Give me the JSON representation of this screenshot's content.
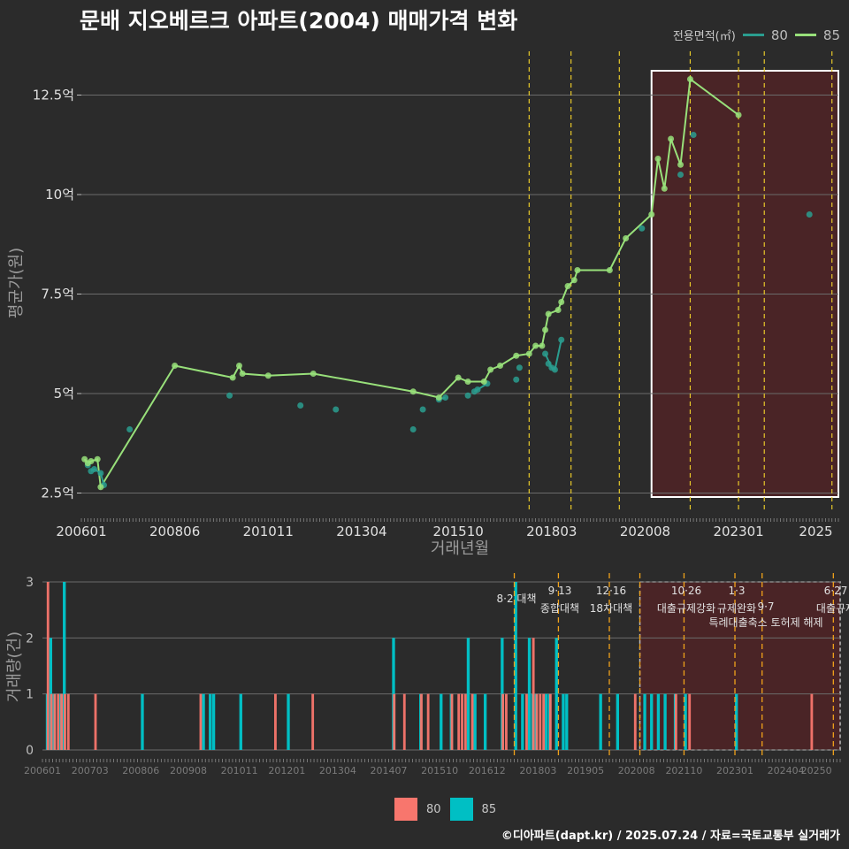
{
  "title": "문배 지오베르크 아파트(2004) 매매가격 변화",
  "credit": "©디아파트(dapt.kr) / 2025.07.24 / 자료=국토교통부 실거래가",
  "colors": {
    "background": "#2b2b2b",
    "series80_line": "#2a9d8f",
    "series85_line": "#98e07a",
    "bar80": "#f8766d",
    "bar85": "#00bfc4",
    "policy_line": "#e8c92a",
    "highlight_fill": "#4a2426",
    "grid": "#6b6b6b"
  },
  "legend_top": {
    "title": "전용면적(㎡)",
    "items": [
      "80",
      "85"
    ]
  },
  "legend_bottom": {
    "items": [
      "80",
      "85"
    ]
  },
  "chart_data": [
    {
      "type": "line",
      "xlabel": "거래년월",
      "ylabel": "평균가(원)",
      "x_ticks": [
        "200601",
        "200806",
        "201011",
        "201304",
        "201510",
        "201803",
        "202008",
        "202301",
        "2025"
      ],
      "y_ticks": [
        "2.5억",
        "5억",
        "7.5억",
        "10억",
        "12.5억"
      ],
      "ylim": [
        2.0,
        13.6
      ],
      "y_unit": "억",
      "xlim": [
        "2006-01",
        "2025-08"
      ],
      "highlight_range": [
        "2020-10",
        "2025-08"
      ],
      "policy_lines": [
        "2017-08",
        "2018-09",
        "2019-12",
        "2021-10",
        "2023-01",
        "2023-09",
        "2025-06"
      ],
      "series": [
        {
          "name": "80",
          "points": [
            [
              "2006-03",
              3.2
            ],
            [
              "2006-04",
              3.05
            ],
            [
              "2006-05",
              3.1
            ],
            [
              "2006-07",
              3.0
            ],
            [
              "2006-08",
              2.7
            ],
            [
              "2007-04",
              4.1
            ],
            [
              "2009-11",
              4.95
            ],
            [
              "2011-09",
              4.7
            ],
            [
              "2012-08",
              4.6
            ],
            [
              "2014-08",
              4.1
            ],
            [
              "2014-11",
              4.6
            ],
            [
              "2015-04",
              4.85
            ],
            [
              "2015-06",
              4.9
            ],
            [
              "2016-01",
              4.95
            ],
            [
              "2016-03",
              5.05
            ],
            [
              "2016-04",
              5.1
            ],
            [
              "2016-07",
              5.25
            ],
            [
              "2017-04",
              5.35
            ],
            [
              "2017-05",
              5.65
            ],
            [
              "2018-01",
              6.0
            ],
            [
              "2018-02",
              5.75
            ],
            [
              "2018-03",
              5.65
            ],
            [
              "2018-04",
              5.6
            ],
            [
              "2018-06",
              6.35
            ],
            [
              "2020-07",
              9.15
            ],
            [
              "2021-07",
              10.5
            ],
            [
              "2021-11",
              11.5
            ],
            [
              "2024-11",
              9.5
            ]
          ],
          "lines": [
            [
              [
                "2006-04",
                3.05
              ],
              [
                "2006-05",
                3.1
              ],
              [
                "2006-07",
                3.0
              ],
              [
                "2006-08",
                2.7
              ]
            ],
            [
              [
                "2015-04",
                4.85
              ],
              [
                "2015-06",
                4.9
              ]
            ],
            [
              [
                "2016-03",
                5.05
              ],
              [
                "2016-04",
                5.1
              ],
              [
                "2016-07",
                5.25
              ]
            ],
            [
              [
                "2018-01",
                6.0
              ],
              [
                "2018-03",
                5.65
              ],
              [
                "2018-04",
                5.6
              ],
              [
                "2018-06",
                6.35
              ]
            ]
          ]
        },
        {
          "name": "85",
          "points": [
            [
              "2006-02",
              3.35
            ],
            [
              "2006-03",
              3.25
            ],
            [
              "2006-04",
              3.3
            ],
            [
              "2006-06",
              3.35
            ],
            [
              "2006-07",
              2.65
            ],
            [
              "2008-06",
              5.7
            ],
            [
              "2009-12",
              5.4
            ],
            [
              "2010-02",
              5.7
            ],
            [
              "2010-03",
              5.5
            ],
            [
              "2010-11",
              5.45
            ],
            [
              "2012-01",
              5.5
            ],
            [
              "2014-08",
              5.05
            ],
            [
              "2015-04",
              4.9
            ],
            [
              "2015-10",
              5.4
            ],
            [
              "2016-01",
              5.3
            ],
            [
              "2016-06",
              5.3
            ],
            [
              "2016-08",
              5.6
            ],
            [
              "2016-11",
              5.7
            ],
            [
              "2017-04",
              5.95
            ],
            [
              "2017-08",
              6.0
            ],
            [
              "2017-10",
              6.2
            ],
            [
              "2017-12",
              6.2
            ],
            [
              "2018-01",
              6.6
            ],
            [
              "2018-02",
              7.0
            ],
            [
              "2018-05",
              7.1
            ],
            [
              "2018-06",
              7.3
            ],
            [
              "2018-08",
              7.7
            ],
            [
              "2018-10",
              7.85
            ],
            [
              "2018-11",
              8.1
            ],
            [
              "2019-09",
              8.1
            ],
            [
              "2020-02",
              8.9
            ],
            [
              "2020-10",
              9.5
            ],
            [
              "2020-12",
              10.9
            ],
            [
              "2021-02",
              10.15
            ],
            [
              "2021-04",
              11.4
            ],
            [
              "2021-07",
              10.75
            ],
            [
              "2021-10",
              12.9
            ],
            [
              "2023-01",
              12.0
            ]
          ]
        }
      ]
    },
    {
      "type": "bar",
      "xlabel": "",
      "ylabel": "거래량(건)",
      "x_ticks": [
        "200601",
        "200703",
        "200806",
        "200908",
        "201011",
        "201201",
        "201304",
        "201407",
        "201510",
        "201612",
        "201803",
        "201905",
        "202008",
        "202110",
        "202301",
        "202404",
        "20250"
      ],
      "y_ticks": [
        "0",
        "1",
        "2",
        "3"
      ],
      "ylim": [
        0,
        3
      ],
      "xlim": [
        "2006-01",
        "2025-08"
      ],
      "highlight_range": [
        "2020-09",
        "2025-08"
      ],
      "policy_lines": [
        "2017-08",
        "2018-09",
        "2019-12",
        "2020-09",
        "2021-10",
        "2023-01",
        "2023-09",
        "2025-06"
      ],
      "annotations": [
        {
          "date": "8·2",
          "text": "대책"
        },
        {
          "date": "9·13",
          "text": "종합대책"
        },
        {
          "date": "12·16",
          "text": "18차대책"
        },
        {
          "date": "10·26",
          "text": "대출규제강화"
        },
        {
          "date": "1·3",
          "text": "규제완화"
        },
        {
          "date": "9·7",
          "text": "특례대출축소 토허제 해제"
        },
        {
          "date": "6·27",
          "text": "대출규제"
        }
      ],
      "series": [
        {
          "name": "80",
          "values": [
            [
              "2006-02",
              3
            ],
            [
              "2006-03",
              1
            ],
            [
              "2006-04",
              1
            ],
            [
              "2006-05",
              1
            ],
            [
              "2006-06",
              1
            ],
            [
              "2006-07",
              1
            ],
            [
              "2006-08",
              1
            ],
            [
              "2007-04",
              1
            ],
            [
              "2009-11",
              1
            ],
            [
              "2011-09",
              1
            ],
            [
              "2012-08",
              1
            ],
            [
              "2014-08",
              1
            ],
            [
              "2014-11",
              1
            ],
            [
              "2015-04",
              1
            ],
            [
              "2015-06",
              1
            ],
            [
              "2016-01",
              1
            ],
            [
              "2016-03",
              1
            ],
            [
              "2016-04",
              1
            ],
            [
              "2016-05",
              1
            ],
            [
              "2016-07",
              1
            ],
            [
              "2017-04",
              1
            ],
            [
              "2017-05",
              1
            ],
            [
              "2017-11",
              1
            ],
            [
              "2018-01",
              2
            ],
            [
              "2018-02",
              1
            ],
            [
              "2018-03",
              1
            ],
            [
              "2018-04",
              1
            ],
            [
              "2018-06",
              1
            ],
            [
              "2020-07",
              1
            ],
            [
              "2021-07",
              1
            ],
            [
              "2021-11",
              1
            ],
            [
              "2024-11",
              1
            ]
          ]
        },
        {
          "name": "85",
          "values": [
            [
              "2006-02",
              1
            ],
            [
              "2006-03",
              2
            ],
            [
              "2006-04",
              1
            ],
            [
              "2006-06",
              1
            ],
            [
              "2006-07",
              3
            ],
            [
              "2008-06",
              1
            ],
            [
              "2009-12",
              1
            ],
            [
              "2010-02",
              1
            ],
            [
              "2010-03",
              1
            ],
            [
              "2010-11",
              1
            ],
            [
              "2012-01",
              1
            ],
            [
              "2014-08",
              2
            ],
            [
              "2015-04",
              1
            ],
            [
              "2015-10",
              1
            ],
            [
              "2016-01",
              1
            ],
            [
              "2016-06",
              2
            ],
            [
              "2016-08",
              1
            ],
            [
              "2016-11",
              1
            ],
            [
              "2017-04",
              2
            ],
            [
              "2017-08",
              3
            ],
            [
              "2017-10",
              1
            ],
            [
              "2017-12",
              2
            ],
            [
              "2018-01",
              1
            ],
            [
              "2018-02",
              1
            ],
            [
              "2018-05",
              1
            ],
            [
              "2018-06",
              1
            ],
            [
              "2018-08",
              2
            ],
            [
              "2018-10",
              1
            ],
            [
              "2018-11",
              1
            ],
            [
              "2019-09",
              1
            ],
            [
              "2020-02",
              1
            ],
            [
              "2020-10",
              1
            ],
            [
              "2020-12",
              1
            ],
            [
              "2021-02",
              1
            ],
            [
              "2021-04",
              1
            ],
            [
              "2021-07",
              1
            ],
            [
              "2021-10",
              1
            ],
            [
              "2023-01",
              1
            ]
          ]
        }
      ]
    }
  ]
}
